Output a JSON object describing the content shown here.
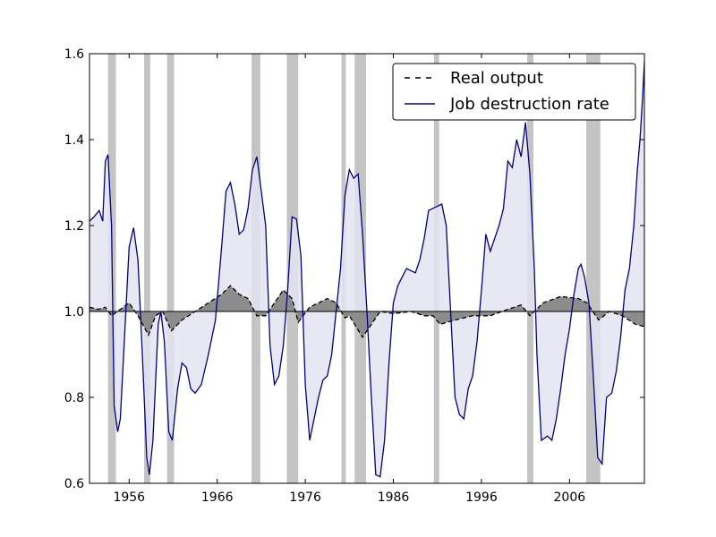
{
  "chart_data": {
    "type": "line",
    "title": "",
    "xlabel": "",
    "ylabel": "",
    "xlim": [
      1951.5,
      2014.5
    ],
    "ylim": [
      0.6,
      1.6
    ],
    "baseline": 1.0,
    "x_ticks": [
      1956,
      1966,
      1976,
      1986,
      1996,
      2006
    ],
    "x_tick_labels": [
      "1956",
      "1966",
      "1976",
      "1986",
      "1996",
      "2006"
    ],
    "y_ticks": [
      0.6,
      0.8,
      1.0,
      1.2,
      1.4,
      1.6
    ],
    "y_tick_labels": [
      "0.6",
      "0.8",
      "1.0",
      "1.2",
      "1.4",
      "1.6"
    ],
    "legend_position": "top-right",
    "colors": {
      "real_output_line": "#000000",
      "real_output_fill": "#8c8c8c",
      "job_destruction_line": "#000080",
      "job_destruction_fill": "#e4e4f2",
      "recession_band": "#c4c4c4"
    },
    "recessions": [
      [
        1953.6,
        1954.5
      ],
      [
        1957.7,
        1958.4
      ],
      [
        1960.3,
        1961.1
      ],
      [
        1969.9,
        1970.9
      ],
      [
        1973.9,
        1975.2
      ],
      [
        1980.1,
        1980.6
      ],
      [
        1981.6,
        1982.9
      ],
      [
        1990.6,
        1991.2
      ],
      [
        2001.2,
        2001.9
      ],
      [
        2007.9,
        2009.5
      ]
    ],
    "series": [
      {
        "name": "Real output",
        "style": "dashed",
        "points": [
          [
            1951.5,
            1.01
          ],
          [
            1952.5,
            1.005
          ],
          [
            1953.3,
            1.01
          ],
          [
            1954.0,
            0.99
          ],
          [
            1955.0,
            1.005
          ],
          [
            1956.0,
            1.02
          ],
          [
            1957.0,
            0.99
          ],
          [
            1958.2,
            0.945
          ],
          [
            1959.0,
            0.99
          ],
          [
            1959.8,
            1.0
          ],
          [
            1960.8,
            0.955
          ],
          [
            1962.0,
            0.98
          ],
          [
            1963.5,
            1.0
          ],
          [
            1965.0,
            1.02
          ],
          [
            1966.5,
            1.04
          ],
          [
            1967.5,
            1.06
          ],
          [
            1968.5,
            1.04
          ],
          [
            1969.5,
            1.03
          ],
          [
            1970.5,
            0.99
          ],
          [
            1971.5,
            0.99
          ],
          [
            1972.5,
            1.02
          ],
          [
            1973.5,
            1.05
          ],
          [
            1974.5,
            1.03
          ],
          [
            1975.2,
            0.975
          ],
          [
            1976.5,
            1.01
          ],
          [
            1977.5,
            1.02
          ],
          [
            1978.5,
            1.03
          ],
          [
            1979.5,
            1.02
          ],
          [
            1980.5,
            0.985
          ],
          [
            1981.0,
            0.99
          ],
          [
            1982.5,
            0.94
          ],
          [
            1983.5,
            0.97
          ],
          [
            1984.5,
            1.0
          ],
          [
            1986.0,
            0.995
          ],
          [
            1988.0,
            1.0
          ],
          [
            1989.5,
            0.99
          ],
          [
            1990.5,
            0.99
          ],
          [
            1991.3,
            0.97
          ],
          [
            1993.0,
            0.98
          ],
          [
            1995.0,
            0.99
          ],
          [
            1997.0,
            0.99
          ],
          [
            1999.0,
            1.005
          ],
          [
            2000.5,
            1.015
          ],
          [
            2001.5,
            0.99
          ],
          [
            2003.0,
            1.02
          ],
          [
            2005.0,
            1.035
          ],
          [
            2007.0,
            1.03
          ],
          [
            2008.0,
            1.02
          ],
          [
            2009.3,
            0.98
          ],
          [
            2010.5,
            1.0
          ],
          [
            2012.0,
            0.99
          ],
          [
            2013.5,
            0.97
          ],
          [
            2014.5,
            0.965
          ]
        ]
      },
      {
        "name": "Job destruction rate",
        "style": "solid",
        "points": [
          [
            1951.5,
            1.21
          ],
          [
            1952.0,
            1.22
          ],
          [
            1952.6,
            1.235
          ],
          [
            1953.0,
            1.21
          ],
          [
            1953.3,
            1.35
          ],
          [
            1953.6,
            1.365
          ],
          [
            1954.0,
            1.2
          ],
          [
            1954.3,
            0.78
          ],
          [
            1954.7,
            0.72
          ],
          [
            1955.0,
            0.75
          ],
          [
            1955.5,
            0.95
          ],
          [
            1956.0,
            1.15
          ],
          [
            1956.5,
            1.195
          ],
          [
            1957.0,
            1.12
          ],
          [
            1957.5,
            0.9
          ],
          [
            1958.0,
            0.66
          ],
          [
            1958.3,
            0.62
          ],
          [
            1958.7,
            0.7
          ],
          [
            1959.3,
            0.97
          ],
          [
            1959.6,
            1.0
          ],
          [
            1960.0,
            0.93
          ],
          [
            1960.5,
            0.72
          ],
          [
            1960.9,
            0.7
          ],
          [
            1961.5,
            0.82
          ],
          [
            1962.0,
            0.88
          ],
          [
            1962.5,
            0.87
          ],
          [
            1963.0,
            0.82
          ],
          [
            1963.5,
            0.81
          ],
          [
            1964.2,
            0.83
          ],
          [
            1965.0,
            0.9
          ],
          [
            1965.8,
            0.98
          ],
          [
            1966.5,
            1.15
          ],
          [
            1967.0,
            1.28
          ],
          [
            1967.5,
            1.3
          ],
          [
            1968.0,
            1.25
          ],
          [
            1968.5,
            1.18
          ],
          [
            1969.0,
            1.19
          ],
          [
            1969.5,
            1.24
          ],
          [
            1970.0,
            1.33
          ],
          [
            1970.5,
            1.36
          ],
          [
            1971.0,
            1.28
          ],
          [
            1971.5,
            1.2
          ],
          [
            1972.0,
            0.92
          ],
          [
            1972.5,
            0.83
          ],
          [
            1973.0,
            0.85
          ],
          [
            1973.5,
            0.92
          ],
          [
            1974.0,
            1.05
          ],
          [
            1974.5,
            1.22
          ],
          [
            1975.0,
            1.215
          ],
          [
            1975.5,
            1.13
          ],
          [
            1976.0,
            0.83
          ],
          [
            1976.5,
            0.7
          ],
          [
            1977.0,
            0.75
          ],
          [
            1977.5,
            0.8
          ],
          [
            1978.0,
            0.84
          ],
          [
            1978.5,
            0.85
          ],
          [
            1979.0,
            0.9
          ],
          [
            1979.5,
            1.0
          ],
          [
            1980.0,
            1.1
          ],
          [
            1980.5,
            1.27
          ],
          [
            1981.0,
            1.33
          ],
          [
            1981.5,
            1.31
          ],
          [
            1982.0,
            1.32
          ],
          [
            1982.5,
            1.18
          ],
          [
            1983.0,
            1.0
          ],
          [
            1983.5,
            0.8
          ],
          [
            1984.0,
            0.62
          ],
          [
            1984.5,
            0.615
          ],
          [
            1985.0,
            0.7
          ],
          [
            1985.5,
            0.88
          ],
          [
            1986.0,
            1.02
          ],
          [
            1986.5,
            1.06
          ],
          [
            1987.0,
            1.08
          ],
          [
            1987.5,
            1.1
          ],
          [
            1988.0,
            1.095
          ],
          [
            1988.5,
            1.09
          ],
          [
            1989.0,
            1.12
          ],
          [
            1989.5,
            1.17
          ],
          [
            1990.0,
            1.235
          ],
          [
            1990.5,
            1.24
          ],
          [
            1991.0,
            1.245
          ],
          [
            1991.5,
            1.25
          ],
          [
            1992.0,
            1.2
          ],
          [
            1992.5,
            1.0
          ],
          [
            1993.0,
            0.8
          ],
          [
            1993.5,
            0.76
          ],
          [
            1994.0,
            0.75
          ],
          [
            1994.5,
            0.82
          ],
          [
            1995.0,
            0.85
          ],
          [
            1995.5,
            0.93
          ],
          [
            1996.0,
            1.05
          ],
          [
            1996.5,
            1.18
          ],
          [
            1997.0,
            1.14
          ],
          [
            1997.5,
            1.17
          ],
          [
            1998.0,
            1.2
          ],
          [
            1998.5,
            1.24
          ],
          [
            1999.0,
            1.35
          ],
          [
            1999.5,
            1.335
          ],
          [
            2000.0,
            1.4
          ],
          [
            2000.5,
            1.36
          ],
          [
            2001.0,
            1.44
          ],
          [
            2001.5,
            1.32
          ],
          [
            2002.0,
            1.1
          ],
          [
            2002.3,
            0.9
          ],
          [
            2002.8,
            0.7
          ],
          [
            2003.5,
            0.71
          ],
          [
            2004.0,
            0.7
          ],
          [
            2004.5,
            0.75
          ],
          [
            2005.0,
            0.82
          ],
          [
            2005.5,
            0.9
          ],
          [
            2006.0,
            0.96
          ],
          [
            2006.5,
            1.04
          ],
          [
            2007.0,
            1.1
          ],
          [
            2007.3,
            1.11
          ],
          [
            2007.7,
            1.08
          ],
          [
            2008.2,
            1.02
          ],
          [
            2008.7,
            0.85
          ],
          [
            2009.2,
            0.66
          ],
          [
            2009.7,
            0.645
          ],
          [
            2010.2,
            0.8
          ],
          [
            2010.8,
            0.81
          ],
          [
            2011.3,
            0.86
          ],
          [
            2011.8,
            0.94
          ],
          [
            2012.3,
            1.05
          ],
          [
            2012.8,
            1.1
          ],
          [
            2013.3,
            1.2
          ],
          [
            2013.7,
            1.33
          ],
          [
            2014.0,
            1.4
          ],
          [
            2014.3,
            1.5
          ],
          [
            2014.5,
            1.58
          ]
        ]
      }
    ]
  }
}
